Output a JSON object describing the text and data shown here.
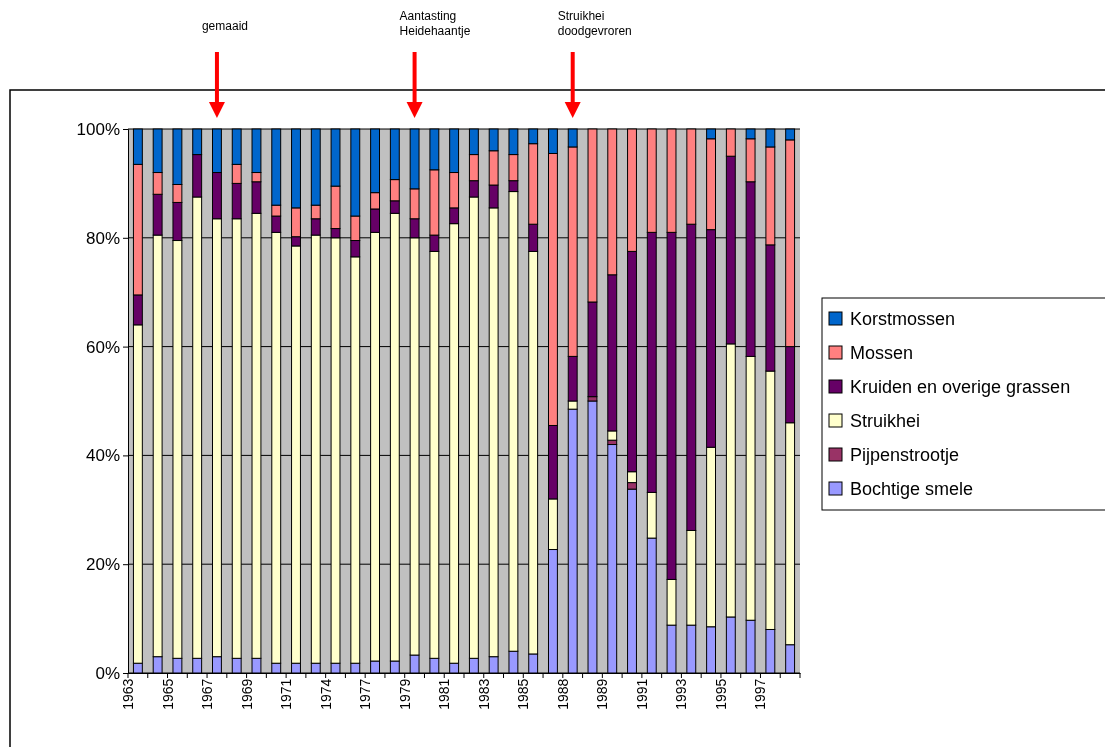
{
  "chart_data": {
    "type": "bar",
    "stacked": true,
    "grid": "y",
    "legend": "right",
    "categories": [
      "1963",
      null,
      "1965",
      null,
      "1967",
      null,
      "1969",
      null,
      "1971",
      null,
      "1974",
      null,
      "1977",
      null,
      "1979",
      null,
      "1981",
      null,
      "1983",
      null,
      "1985",
      null,
      "1988",
      null,
      "1989",
      null,
      "1991",
      null,
      "1993",
      null,
      "1995",
      null,
      "1997",
      null
    ],
    "ylim": [
      0,
      100
    ],
    "yticks": [
      {
        "value": 0,
        "label": "0%"
      },
      {
        "value": 20,
        "label": "20%"
      },
      {
        "value": 40,
        "label": "40%"
      },
      {
        "value": 60,
        "label": "60%"
      },
      {
        "value": 80,
        "label": "80%"
      },
      {
        "value": 100,
        "label": "100%"
      }
    ],
    "series": [
      {
        "name": "Bochtige smele",
        "color": "#9999ff",
        "values": [
          1.8,
          3,
          2.7,
          2.7,
          3,
          2.7,
          2.7,
          1.8,
          1.8,
          1.8,
          1.8,
          1.8,
          2.2,
          2.2,
          3.3,
          2.7,
          1.8,
          2.7,
          3,
          4,
          3.5,
          22.7,
          48.5,
          50,
          42,
          33.8,
          24.8,
          8.8,
          8.8,
          8.5,
          10.3,
          9.7,
          8,
          5.2
        ]
      },
      {
        "name": "Pijpenstrootje",
        "color": "#993366",
        "values": [
          0,
          0,
          0,
          0,
          0,
          0,
          0,
          0,
          0,
          0,
          0,
          0,
          0,
          0,
          0,
          0,
          0,
          0,
          0,
          0,
          0,
          0,
          0,
          0.8,
          0.8,
          1.2,
          0,
          0,
          0,
          0,
          0,
          0,
          0,
          0
        ]
      },
      {
        "name": "Struikhei",
        "color": "#ffffcc",
        "values": [
          62.2,
          77.5,
          76.8,
          84.8,
          80.5,
          80.8,
          81.8,
          79.2,
          76.7,
          78.7,
          78.2,
          74.7,
          78.8,
          82.3,
          76.7,
          74.8,
          80.8,
          84.8,
          82.5,
          84.5,
          74,
          9.3,
          1.5,
          0,
          1.7,
          2,
          8.4,
          8.4,
          17.4,
          33,
          50.2,
          48.5,
          47.5,
          40.8
        ]
      },
      {
        "name": "Kruiden en overige grassen",
        "color": "#660066",
        "values": [
          5.5,
          7.5,
          7,
          7.8,
          8.5,
          6.5,
          5.8,
          3,
          1.7,
          3,
          1.7,
          3,
          4.3,
          2.3,
          3.5,
          3,
          2.9,
          3,
          4.2,
          2,
          5,
          13.5,
          8.2,
          17.4,
          28.7,
          40.5,
          47.8,
          63.8,
          56.3,
          40,
          34.5,
          32.1,
          23.2,
          14
        ]
      },
      {
        "name": "Mossen",
        "color": "#ff8080",
        "values": [
          24,
          4,
          3.3,
          0,
          0,
          3.5,
          1.7,
          2,
          5.3,
          2.5,
          7.8,
          4.5,
          3,
          3.9,
          5.5,
          12,
          6.5,
          4.8,
          6.3,
          4.8,
          14.8,
          50,
          38.5,
          31.8,
          26.8,
          22.5,
          19,
          19,
          17.5,
          16.7,
          5,
          7.9,
          18,
          38
        ]
      },
      {
        "name": "Korstmossen",
        "color": "#0066cc",
        "values": [
          6.5,
          8,
          10.2,
          4.7,
          8,
          6.5,
          8,
          14,
          14.5,
          14,
          10.5,
          16,
          11.7,
          9.3,
          11,
          7.5,
          8,
          4.7,
          4,
          4.7,
          2.7,
          4.5,
          3.3,
          0,
          0,
          0,
          0,
          0,
          0,
          1.8,
          0,
          1.8,
          3.3,
          2
        ]
      }
    ],
    "annotations": [
      "gemaaid",
      "Aantasting Heidehaantje",
      "Struikhei doodgevroren"
    ]
  }
}
